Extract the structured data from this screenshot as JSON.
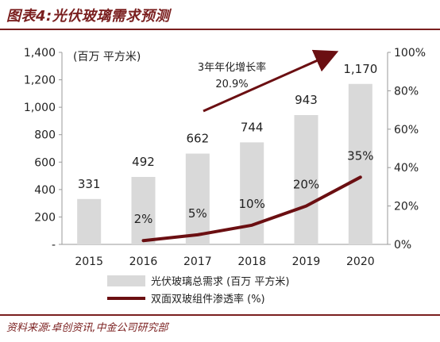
{
  "figure": {
    "title": "图表4:光伏玻璃需求预测",
    "source": "资料来源:卓创资讯,中金公司研究部"
  },
  "colors": {
    "bar": "#d9d9d9",
    "line": "#6b0f12",
    "accent": "#7a1f1f",
    "text": "#222222"
  },
  "chart_data": {
    "type": "bar",
    "categories": [
      "2015",
      "2016",
      "2017",
      "2018",
      "2019",
      "2020"
    ],
    "series": [
      {
        "name": "光伏玻璃总需求 (百万 平方米)",
        "type": "bar",
        "axis": "left",
        "values": [
          331,
          492,
          662,
          744,
          943,
          1170
        ],
        "labels": [
          "331",
          "492",
          "662",
          "744",
          "943",
          "1,170"
        ]
      },
      {
        "name": "双面双玻组件渗透率 (%)",
        "type": "line",
        "axis": "right",
        "values": [
          null,
          2,
          5,
          10,
          20,
          35
        ],
        "labels": [
          "",
          "2%",
          "5%",
          "10%",
          "20%",
          "35%"
        ]
      }
    ],
    "y_left": {
      "label": "(百万 平方米)",
      "ylim": [
        0,
        1400
      ],
      "ticks": [
        0,
        200,
        400,
        600,
        800,
        1000,
        1200,
        1400
      ],
      "tick_labels": [
        "-",
        "200",
        "400",
        "600",
        "800",
        "1,000",
        "1,200",
        "1,400"
      ]
    },
    "y_right": {
      "ylim": [
        0,
        100
      ],
      "ticks": [
        0,
        20,
        40,
        60,
        80,
        100
      ],
      "tick_labels": [
        "0%",
        "20%",
        "40%",
        "60%",
        "80%",
        "100%"
      ]
    },
    "annotation": {
      "line1": "3年年化增长率",
      "line2": "20.9%"
    },
    "grid": false,
    "legend_position": "bottom"
  }
}
